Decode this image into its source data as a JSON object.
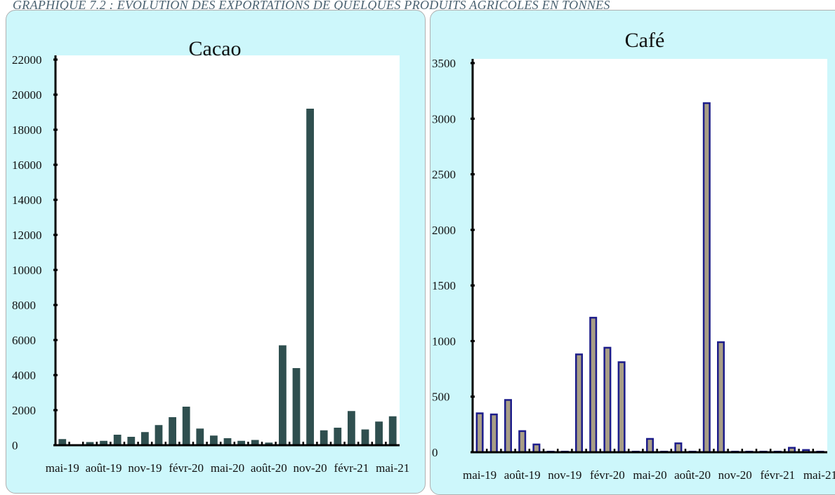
{
  "caption": "GRAPHIQUE 7.2 : EVOLUTION DES EXPORTATIONS DE QUELQUES PRODUITS AGRICOLES EN TONNES",
  "chart_data": [
    {
      "type": "bar",
      "title": "Cacao",
      "xlabel": "",
      "ylabel": "",
      "ylim": [
        0,
        22000
      ],
      "yticks": [
        0,
        2000,
        4000,
        6000,
        8000,
        10000,
        12000,
        14000,
        16000,
        18000,
        20000,
        22000
      ],
      "xtick_labels": [
        "mai-19",
        "août-19",
        "nov-19",
        "févr-20",
        "mai-20",
        "août-20",
        "nov-20",
        "févr-21",
        "mai-21"
      ],
      "categories": [
        "mai-19",
        "juin-19",
        "juil-19",
        "août-19",
        "sept-19",
        "oct-19",
        "nov-19",
        "déc-19",
        "janv-20",
        "févr-20",
        "mars-20",
        "avr-20",
        "mai-20",
        "juin-20",
        "juil-20",
        "août-20",
        "sept-20",
        "oct-20",
        "nov-20",
        "déc-20",
        "janv-21",
        "févr-21",
        "mars-21",
        "avr-21",
        "mai-21"
      ],
      "values": [
        350,
        50,
        180,
        250,
        600,
        480,
        750,
        1150,
        1600,
        2200,
        950,
        550,
        400,
        250,
        300,
        150,
        5700,
        4400,
        19200,
        850,
        1000,
        1950,
        900,
        1350,
        1650
      ],
      "colors": {
        "bar": "#2f4f4f",
        "panel_bg": "#cdf7fb",
        "plot_bg": "#ffffff"
      }
    },
    {
      "type": "bar",
      "title": "Café",
      "xlabel": "",
      "ylabel": "",
      "ylim": [
        0,
        3500
      ],
      "yticks": [
        0,
        500,
        1000,
        1500,
        2000,
        2500,
        3000,
        3500
      ],
      "xtick_labels": [
        "mai-19",
        "août-19",
        "nov-19",
        "févr-20",
        "mai-20",
        "août-20",
        "nov-20",
        "févr-21",
        "mai-21"
      ],
      "categories": [
        "mai-19",
        "juin-19",
        "juil-19",
        "août-19",
        "sept-19",
        "oct-19",
        "nov-19",
        "déc-19",
        "janv-20",
        "févr-20",
        "mars-20",
        "avr-20",
        "mai-20",
        "juin-20",
        "juil-20",
        "août-20",
        "sept-20",
        "oct-20",
        "nov-20",
        "déc-20",
        "janv-21",
        "févr-21",
        "mars-21",
        "avr-21",
        "mai-21"
      ],
      "values": [
        350,
        340,
        470,
        190,
        70,
        5,
        5,
        880,
        1210,
        940,
        810,
        0,
        120,
        0,
        80,
        0,
        3140,
        990,
        0,
        0,
        0,
        5,
        40,
        20,
        5
      ],
      "colors": {
        "bar": "#a89e86",
        "bar_edge": "#1c1c8a",
        "panel_bg": "#cdf7fb",
        "plot_bg": "#ffffff"
      }
    }
  ]
}
